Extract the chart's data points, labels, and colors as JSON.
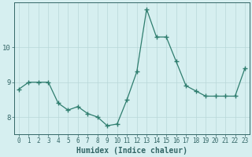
{
  "x": [
    0,
    1,
    2,
    3,
    4,
    5,
    6,
    7,
    8,
    9,
    10,
    11,
    12,
    13,
    14,
    15,
    16,
    17,
    18,
    19,
    20,
    21,
    22,
    23
  ],
  "y": [
    8.8,
    9.0,
    9.0,
    9.0,
    8.4,
    8.2,
    8.3,
    8.1,
    8.0,
    7.75,
    7.8,
    8.5,
    9.3,
    11.1,
    10.3,
    10.3,
    9.6,
    8.9,
    8.75,
    8.6,
    8.6,
    8.6,
    8.6,
    9.4
  ],
  "line_color": "#2e7d6e",
  "marker": "+",
  "marker_size": 4,
  "background_color": "#d6eff0",
  "grid_color": "#b8d8d8",
  "tick_color": "#336666",
  "xlabel": "Humidex (Indice chaleur)",
  "xlabel_fontsize": 7,
  "ylim": [
    7.5,
    11.3
  ],
  "xlim": [
    -0.5,
    23.5
  ],
  "yticks": [
    8,
    9,
    10
  ],
  "xticks": [
    0,
    1,
    2,
    3,
    4,
    5,
    6,
    7,
    8,
    9,
    10,
    11,
    12,
    13,
    14,
    15,
    16,
    17,
    18,
    19,
    20,
    21,
    22,
    23
  ],
  "font_color": "#336666",
  "spine_color": "#336666"
}
